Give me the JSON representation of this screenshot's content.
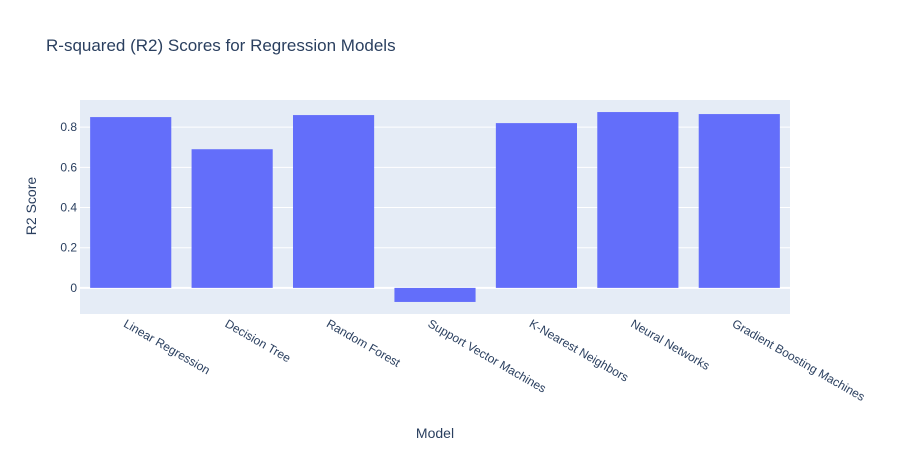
{
  "chart_data": {
    "type": "bar",
    "title": "R-squared (R2) Scores for Regression Models",
    "xlabel": "Model",
    "ylabel": "R2 Score",
    "categories": [
      "Linear Regression",
      "Decision Tree",
      "Random Forest",
      "Support Vector Machines",
      "K-Nearest Neighbors",
      "Neural Networks",
      "Gradient Boosting Machines"
    ],
    "values": [
      0.85,
      0.69,
      0.86,
      -0.07,
      0.82,
      0.875,
      0.865
    ],
    "ylim": [
      -0.13,
      0.935
    ],
    "yticks": [
      0,
      0.2,
      0.4,
      0.6,
      0.8
    ],
    "ytick_labels": [
      "0",
      "0.2",
      "0.4",
      "0.6",
      "0.8"
    ],
    "grid": true,
    "colors": {
      "bar": "#636efa",
      "plot_bg": "#e5ecf6",
      "grid": "#ffffff",
      "text": "#2a3f5f"
    }
  }
}
